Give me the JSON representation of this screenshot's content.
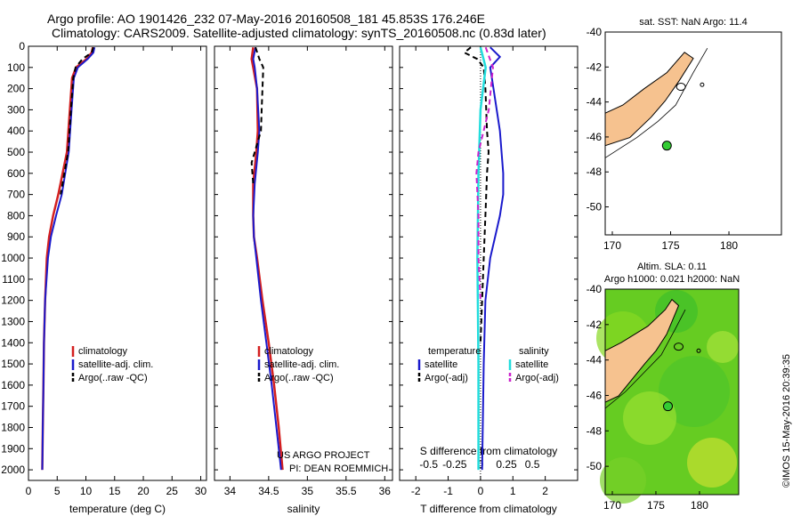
{
  "header": {
    "line1": "Argo profile: AO 1901426_232 07-May-2016 20160508_181 45.853S 176.246E",
    "line2": "Climatology: CARS2009. Satellite-adjusted climatology: synTS_20160508.nc (0.83d later)"
  },
  "credit": {
    "project": "US ARGO PROJECT",
    "pi": "PI: DEAN ROEMMICH",
    "imos": "©IMOS 15-May-2016 20:39:35"
  },
  "colors": {
    "climatology": "#d42020",
    "satellite": "#1a1acc",
    "argo": "#000000",
    "sal_satellite": "#22dddd",
    "sal_argo": "#cc22cc",
    "land": "#f6c28f",
    "sea_green": "#66cc22"
  },
  "chart_data": [
    {
      "type": "line",
      "panel": "temperature",
      "xlabel": "temperature (deg C)",
      "ylabel": "",
      "xlim": [
        0,
        31
      ],
      "ylim": [
        0,
        2050
      ],
      "xticks": [
        0,
        5,
        10,
        15,
        20,
        25,
        30
      ],
      "yticks": [
        0,
        100,
        200,
        300,
        400,
        500,
        600,
        700,
        800,
        900,
        1000,
        1100,
        1200,
        1300,
        1400,
        1500,
        1600,
        1700,
        1800,
        1900,
        2000
      ],
      "legend": [
        "climatology",
        "satellite-adj. clim.",
        "Argo(..raw -QC)"
      ],
      "series": [
        {
          "name": "climatology",
          "style": "red",
          "depth": [
            5,
            30,
            60,
            100,
            150,
            300,
            500,
            700,
            800,
            900,
            1000,
            1200,
            1400,
            1600,
            1800,
            2000
          ],
          "values": [
            11.2,
            11.0,
            10.1,
            8.3,
            7.6,
            7.2,
            6.7,
            5.2,
            4.3,
            3.6,
            3.2,
            2.9,
            2.7,
            2.6,
            2.5,
            2.4
          ]
        },
        {
          "name": "satellite-adj. clim.",
          "style": "blue",
          "depth": [
            5,
            30,
            60,
            100,
            150,
            300,
            500,
            700,
            800,
            900,
            1000,
            1200,
            1400,
            1600,
            1800,
            2000
          ],
          "values": [
            11.5,
            11.3,
            10.3,
            8.6,
            7.9,
            7.5,
            7.0,
            5.8,
            4.8,
            3.9,
            3.4,
            2.9,
            2.7,
            2.6,
            2.5,
            2.4
          ]
        },
        {
          "name": "Argo(..raw -QC)",
          "style": "black-dash",
          "depth": [
            5,
            30,
            60,
            100,
            150,
            300,
            500,
            700
          ],
          "values": [
            11.3,
            11.0,
            9.4,
            8.2,
            7.8,
            7.4,
            6.9,
            5.6
          ]
        }
      ]
    },
    {
      "type": "line",
      "panel": "salinity",
      "xlabel": "salinity",
      "ylabel": "",
      "xlim": [
        33.8,
        36.1
      ],
      "ylim": [
        0,
        2050
      ],
      "xticks": [
        34,
        34.5,
        35,
        35.5,
        36
      ],
      "legend": [
        "climatology",
        "satellite-adj. clim.",
        "Argo(..raw -QC)"
      ],
      "series": [
        {
          "name": "climatology",
          "style": "red",
          "depth": [
            5,
            60,
            100,
            200,
            400,
            500,
            650,
            800,
            900,
            1000,
            1200,
            1400,
            1600,
            1800,
            2000
          ],
          "values": [
            34.3,
            34.28,
            34.3,
            34.35,
            34.36,
            34.34,
            34.3,
            34.3,
            34.31,
            34.35,
            34.42,
            34.5,
            34.57,
            34.63,
            34.68
          ]
        },
        {
          "name": "satellite-adj. clim.",
          "style": "blue",
          "depth": [
            5,
            60,
            100,
            200,
            400,
            500,
            650,
            800,
            900,
            1000,
            1200,
            1400,
            1600,
            1800,
            2000
          ],
          "values": [
            34.33,
            34.3,
            34.32,
            34.35,
            34.38,
            34.36,
            34.32,
            34.3,
            34.31,
            34.34,
            34.4,
            34.47,
            34.54,
            34.6,
            34.66
          ]
        },
        {
          "name": "Argo(..raw -QC)",
          "style": "black-dash",
          "depth": [
            5,
            60,
            100,
            200,
            300,
            400,
            500,
            550,
            650
          ],
          "values": [
            34.33,
            34.38,
            34.43,
            34.42,
            34.41,
            34.4,
            34.32,
            34.28,
            34.3
          ]
        }
      ],
      "annotations": [
        "US ARGO PROJECT",
        "PI: DEAN ROEMMICH"
      ]
    },
    {
      "type": "line",
      "panel": "difference",
      "xlabel": "T difference from climatology",
      "xlabel_top": "S difference from climatology",
      "xlim": [
        -2.5,
        3
      ],
      "ylim": [
        0,
        2050
      ],
      "xticks": [
        -2,
        -1,
        0,
        1,
        2
      ],
      "xticks_top": [
        -0.5,
        -0.25,
        0,
        0.25,
        0.5
      ],
      "legend_title_left": "temperature",
      "legend_title_right": "salinity",
      "legend": [
        "satellite",
        "Argo(-adj)",
        "satellite",
        "Argo(-adj)"
      ],
      "series": [
        {
          "name": "temperature satellite",
          "style": "blue",
          "depth": [
            5,
            50,
            100,
            200,
            400,
            600,
            700,
            800,
            900,
            1000,
            1200,
            1500,
            2000
          ],
          "values": [
            0.3,
            0.6,
            0.3,
            0.4,
            0.6,
            0.7,
            0.7,
            0.6,
            0.45,
            0.3,
            0.15,
            0.1,
            0.05
          ]
        },
        {
          "name": "temperature Argo(-adj)",
          "style": "black-dash",
          "depth": [
            5,
            30,
            60,
            100,
            200,
            400,
            500,
            600,
            800,
            1000,
            1200,
            1400
          ],
          "values": [
            -0.3,
            -0.5,
            -0.1,
            0.1,
            0.15,
            0.2,
            0.25,
            0.2,
            0.15,
            0.1,
            0.05,
            0.0
          ]
        },
        {
          "name": "salinity satellite",
          "style": "cyan",
          "depth": [
            5,
            100,
            300,
            600,
            1000,
            1500,
            2000
          ],
          "values": [
            0.0,
            0.05,
            0.0,
            -0.02,
            -0.03,
            -0.02,
            -0.02
          ]
        },
        {
          "name": "salinity Argo(-adj)",
          "style": "magenta-dash",
          "depth": [
            5,
            100,
            300,
            500,
            600,
            800,
            1000,
            1200
          ],
          "values": [
            0.05,
            0.12,
            0.08,
            -0.02,
            -0.04,
            -0.02,
            -0.02,
            0.0
          ]
        }
      ]
    }
  ],
  "maps": {
    "top": {
      "title": "sat. SST: NaN Argo: 11.4",
      "yticks": [
        "-40",
        "-42",
        "-44",
        "-46",
        "-48",
        "-50"
      ],
      "xticks": [
        "170",
        "175",
        "180"
      ]
    },
    "bottom": {
      "title1": "Altim. SLA: 0.11",
      "title2": "Argo h1000: 0.021 h2000: NaN",
      "yticks": [
        "-40",
        "-42",
        "-44",
        "-46",
        "-48",
        "-50"
      ],
      "xticks": [
        "170",
        "175",
        "180"
      ]
    }
  }
}
